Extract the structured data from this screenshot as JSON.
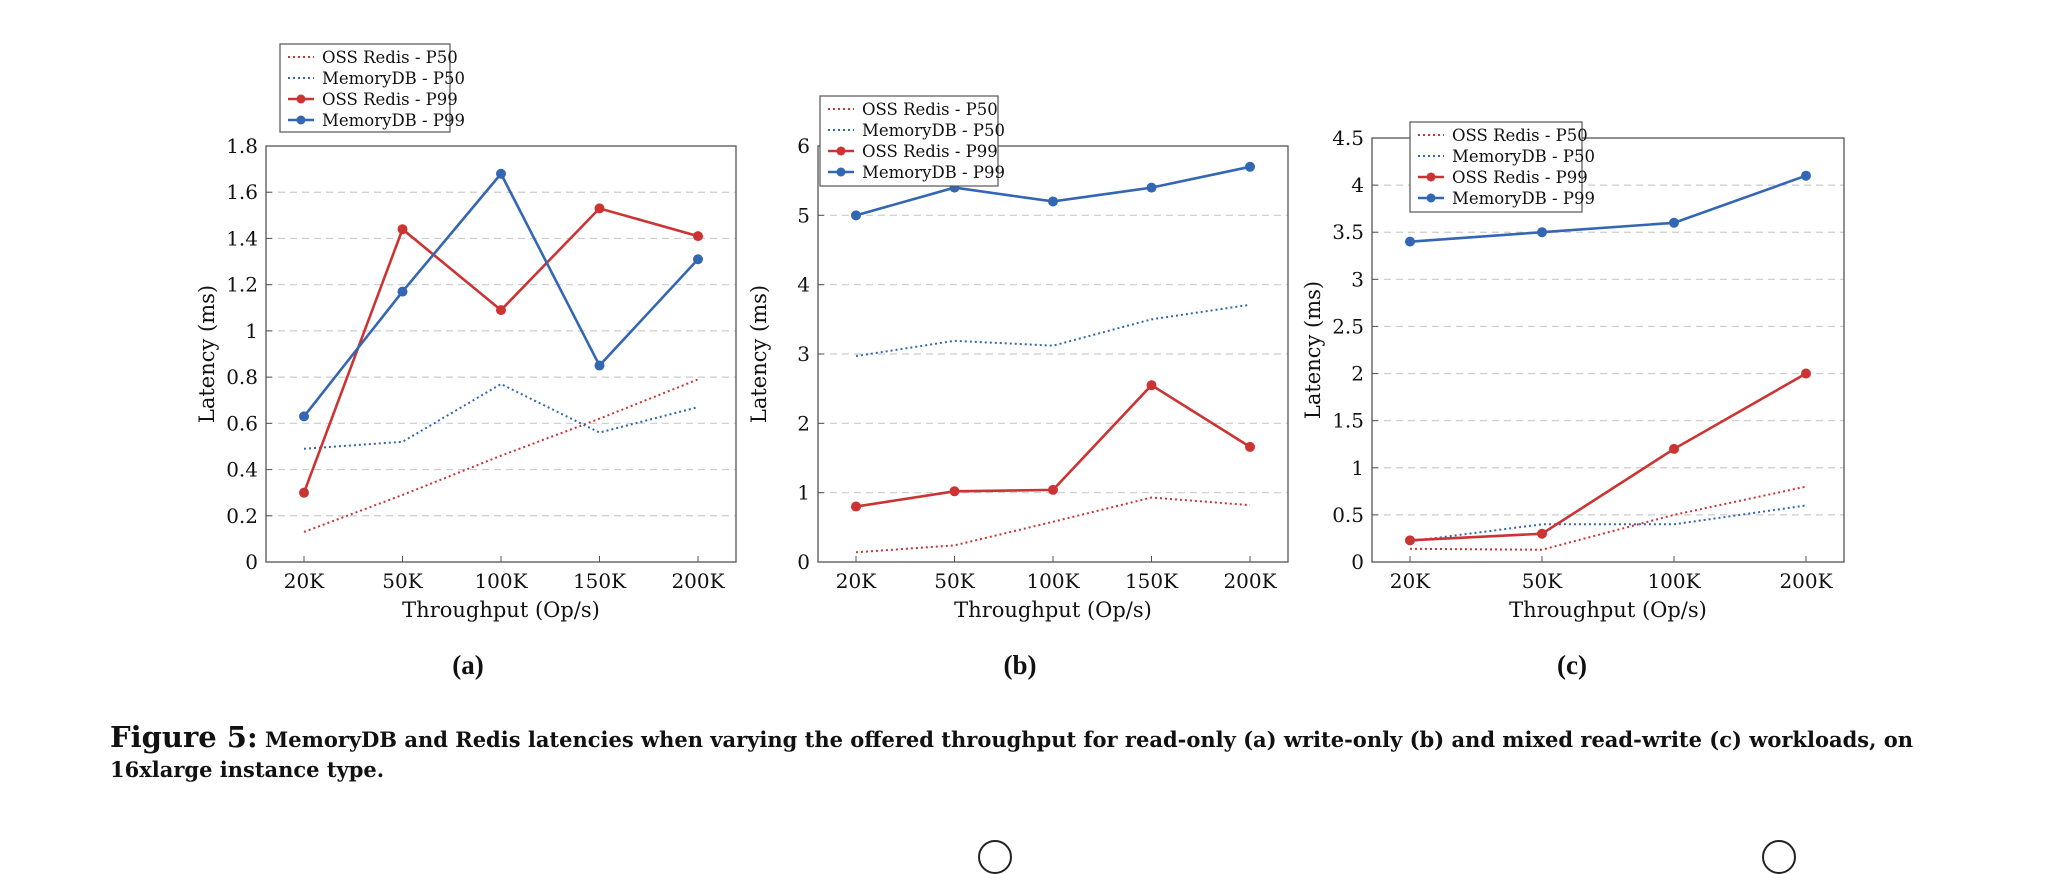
{
  "caption": {
    "figure_label": "Figure 5:",
    "text": "MemoryDB and Redis latencies when varying the offered throughput for read-only (a) write-only (b) and mixed read-write (c) workloads, on 16xlarge instance type."
  },
  "colors": {
    "oss_redis": "#cc3333",
    "memorydb": "#3366b3",
    "grid": "#cccccc",
    "axis": "#555555"
  },
  "chart_data": [
    {
      "type": "line",
      "sublabel": "(a)",
      "xlabel": "Throughput (Op/s)",
      "ylabel": "Latency (ms)",
      "categories": [
        "20K",
        "50K",
        "100K",
        "150K",
        "200K"
      ],
      "ylim": [
        0,
        1.8
      ],
      "yticks": [
        "0",
        "0.2",
        "0.4",
        "0.6",
        "0.8",
        "1",
        "1.2",
        "1.4",
        "1.6",
        "1.8"
      ],
      "grid": true,
      "legend": "top-left",
      "series": [
        {
          "name": "OSS Redis - P50",
          "style": "dotted",
          "color": "#cc3333",
          "values": [
            0.13,
            0.29,
            0.46,
            0.62,
            0.79
          ]
        },
        {
          "name": "MemoryDB - P50",
          "style": "dotted",
          "color": "#3366b3",
          "values": [
            0.49,
            0.52,
            0.77,
            0.56,
            0.67
          ]
        },
        {
          "name": "OSS Redis - P99",
          "style": "solid-marker",
          "color": "#cc3333",
          "values": [
            0.3,
            1.44,
            1.09,
            1.53,
            1.41
          ]
        },
        {
          "name": "MemoryDB - P99",
          "style": "solid-marker",
          "color": "#3366b3",
          "values": [
            0.63,
            1.17,
            1.68,
            0.85,
            1.31
          ]
        }
      ]
    },
    {
      "type": "line",
      "sublabel": "(b)",
      "xlabel": "Throughput (Op/s)",
      "ylabel": "Latency (ms)",
      "categories": [
        "20K",
        "50K",
        "100K",
        "150K",
        "200K"
      ],
      "ylim": [
        0,
        6
      ],
      "yticks": [
        "0",
        "1",
        "2",
        "3",
        "4",
        "5",
        "6"
      ],
      "grid": true,
      "legend": "top-left",
      "series": [
        {
          "name": "OSS Redis - P50",
          "style": "dotted",
          "color": "#cc3333",
          "values": [
            0.14,
            0.24,
            0.58,
            0.93,
            0.82
          ]
        },
        {
          "name": "MemoryDB - P50",
          "style": "dotted",
          "color": "#3366b3",
          "values": [
            2.97,
            3.19,
            3.12,
            3.5,
            3.71
          ]
        },
        {
          "name": "OSS Redis - P99",
          "style": "solid-marker",
          "color": "#cc3333",
          "values": [
            0.8,
            1.02,
            1.04,
            2.55,
            1.66
          ]
        },
        {
          "name": "MemoryDB - P99",
          "style": "solid-marker",
          "color": "#3366b3",
          "values": [
            5.0,
            5.4,
            5.2,
            5.4,
            5.7
          ]
        }
      ]
    },
    {
      "type": "line",
      "sublabel": "(c)",
      "xlabel": "Throughput (Op/s)",
      "ylabel": "Latency (ms)",
      "categories": [
        "20K",
        "50K",
        "100K",
        "200K"
      ],
      "ylim": [
        0,
        4.5
      ],
      "yticks": [
        "0",
        "0.5",
        "1",
        "1.5",
        "2",
        "2.5",
        "3",
        "3.5",
        "4",
        "4.5"
      ],
      "grid": true,
      "legend": "top-left",
      "series": [
        {
          "name": "OSS Redis - P50",
          "style": "dotted",
          "color": "#cc3333",
          "values": [
            0.14,
            0.13,
            0.5,
            0.8
          ]
        },
        {
          "name": "MemoryDB - P50",
          "style": "dotted",
          "color": "#3366b3",
          "values": [
            0.22,
            0.4,
            0.4,
            0.6
          ]
        },
        {
          "name": "OSS Redis - P99",
          "style": "solid-marker",
          "color": "#cc3333",
          "values": [
            0.23,
            0.3,
            1.2,
            2.0
          ]
        },
        {
          "name": "MemoryDB - P99",
          "style": "solid-marker",
          "color": "#3366b3",
          "values": [
            3.4,
            3.5,
            3.6,
            4.1
          ]
        }
      ]
    }
  ]
}
